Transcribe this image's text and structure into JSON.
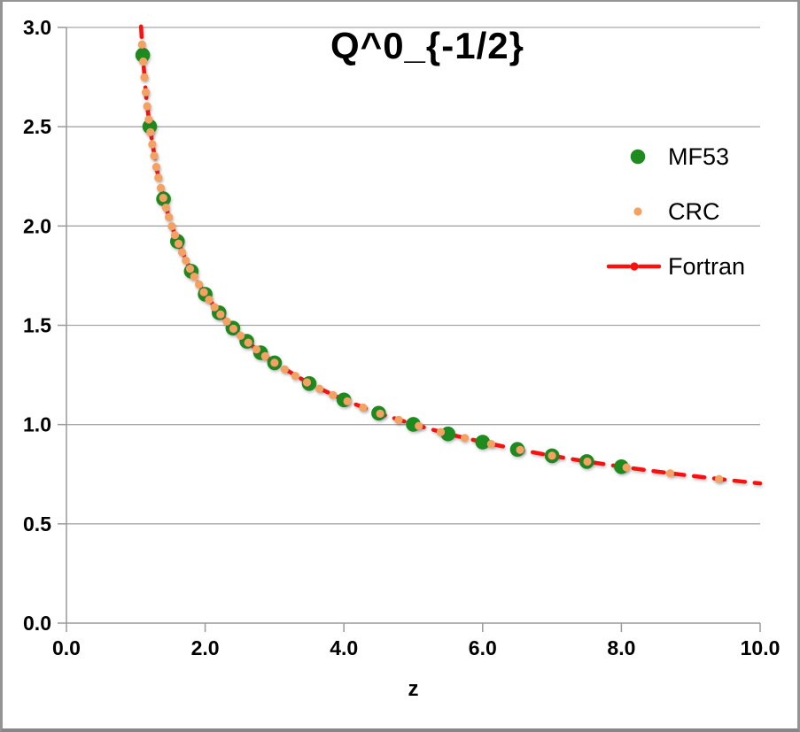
{
  "chart_data": {
    "type": "scatter",
    "title": "Q^0_{-1/2}",
    "xlabel": "z",
    "xlim": [
      0,
      10
    ],
    "ylim": [
      0,
      3
    ],
    "x_tick_labels": [
      "0.0",
      "2.0",
      "4.0",
      "6.0",
      "8.0",
      "10.0"
    ],
    "y_tick_labels": [
      "0.0",
      "0.5",
      "1.0",
      "1.5",
      "2.0",
      "2.5",
      "3.0"
    ],
    "grid": "horizontal",
    "legend_position": "upper right",
    "style": {
      "grid_color": "#a6a6a6",
      "axis_color": "#999999",
      "text_color": "#000000",
      "background": "#ffffff"
    },
    "series": [
      {
        "name": "MF53",
        "type": "scatter",
        "color": "#1e8b1e",
        "marker_radius": 8.3,
        "points": [
          [
            1.1,
            2.8611
          ],
          [
            1.2,
            2.5008
          ],
          [
            1.4,
            2.1366
          ],
          [
            1.6,
            1.9228
          ],
          [
            1.8,
            1.7722
          ],
          [
            2.0,
            1.6566
          ],
          [
            2.2,
            1.5633
          ],
          [
            2.4,
            1.4856
          ],
          [
            2.6,
            1.4193
          ],
          [
            2.8,
            1.3617
          ],
          [
            3.0,
            1.311
          ],
          [
            3.5,
            1.2065
          ],
          [
            4.0,
            1.1242
          ],
          [
            4.5,
            1.0572
          ],
          [
            5.0,
            1.0011
          ],
          [
            5.5,
            0.9532
          ],
          [
            6.0,
            0.9118
          ],
          [
            6.5,
            0.8752
          ],
          [
            7.0,
            0.8429
          ],
          [
            7.5,
            0.8139
          ],
          [
            8.0,
            0.7877
          ]
        ]
      },
      {
        "name": "CRC",
        "type": "scatter",
        "color": "#f3a262",
        "marker_radius": 4.6,
        "points": [
          [
            1.09,
            2.9135
          ],
          [
            1.107,
            2.8282
          ],
          [
            1.124,
            2.7485
          ],
          [
            1.144,
            2.6737
          ],
          [
            1.164,
            2.6032
          ],
          [
            1.187,
            2.5363
          ],
          [
            1.211,
            2.4726
          ],
          [
            1.237,
            2.4118
          ],
          [
            1.265,
            2.3534
          ],
          [
            1.295,
            2.2976
          ],
          [
            1.326,
            2.2437
          ],
          [
            1.36,
            2.1916
          ],
          [
            1.396,
            2.1413
          ],
          [
            1.435,
            2.0925
          ],
          [
            1.476,
            2.0451
          ],
          [
            1.519,
            1.999
          ],
          [
            1.565,
            1.9541
          ],
          [
            1.615,
            1.9104
          ],
          [
            1.667,
            1.8676
          ],
          [
            1.722,
            1.8257
          ],
          [
            1.781,
            1.7848
          ],
          [
            1.843,
            1.7447
          ],
          [
            1.91,
            1.7054
          ],
          [
            1.981,
            1.6667
          ],
          [
            2.056,
            1.6288
          ],
          [
            2.136,
            1.5914
          ],
          [
            2.221,
            1.5547
          ],
          [
            2.311,
            1.5185
          ],
          [
            2.408,
            1.4828
          ],
          [
            2.511,
            1.4476
          ],
          [
            2.621,
            1.4128
          ],
          [
            2.739,
            1.3785
          ],
          [
            2.865,
            1.3446
          ],
          [
            3.0,
            1.311
          ],
          [
            3.145,
            1.2779
          ],
          [
            3.3,
            1.2451
          ],
          [
            3.467,
            1.2126
          ],
          [
            3.647,
            1.1804
          ],
          [
            3.841,
            1.1485
          ],
          [
            4.05,
            1.1169
          ],
          [
            4.277,
            1.0856
          ],
          [
            4.522,
            1.0545
          ],
          [
            4.789,
            1.0236
          ],
          [
            5.079,
            0.993
          ],
          [
            5.396,
            0.9626
          ],
          [
            5.742,
            0.9324
          ],
          [
            6.122,
            0.9024
          ],
          [
            6.54,
            0.8725
          ],
          [
            7.0,
            0.8429
          ],
          [
            7.509,
            0.8134
          ],
          [
            8.074,
            0.784
          ],
          [
            8.704,
            0.7549
          ],
          [
            9.407,
            0.7258
          ]
        ]
      },
      {
        "name": "Fortran",
        "type": "line",
        "color": "#fb0f0f",
        "width": 4.5,
        "dash": [
          12,
          11
        ],
        "points": [
          [
            1.075,
            3.005
          ],
          [
            1.1,
            2.8611
          ],
          [
            1.15,
            2.6509
          ],
          [
            1.2,
            2.5008
          ],
          [
            1.3,
            2.288
          ],
          [
            1.4,
            2.1366
          ],
          [
            1.5,
            2.0189
          ],
          [
            1.6,
            1.9228
          ],
          [
            1.8,
            1.7722
          ],
          [
            2.0,
            1.6566
          ],
          [
            2.2,
            1.5633
          ],
          [
            2.4,
            1.4856
          ],
          [
            2.6,
            1.4193
          ],
          [
            2.8,
            1.3617
          ],
          [
            3.0,
            1.311
          ],
          [
            3.5,
            1.2065
          ],
          [
            4.0,
            1.1242
          ],
          [
            4.5,
            1.0572
          ],
          [
            5.0,
            1.0011
          ],
          [
            5.5,
            0.9532
          ],
          [
            6.0,
            0.9118
          ],
          [
            6.5,
            0.8752
          ],
          [
            7.0,
            0.8429
          ],
          [
            7.5,
            0.8139
          ],
          [
            8.0,
            0.7877
          ],
          [
            8.5,
            0.7639
          ],
          [
            9.0,
            0.7422
          ],
          [
            9.5,
            0.7222
          ],
          [
            10.0,
            0.7038
          ]
        ]
      }
    ]
  }
}
